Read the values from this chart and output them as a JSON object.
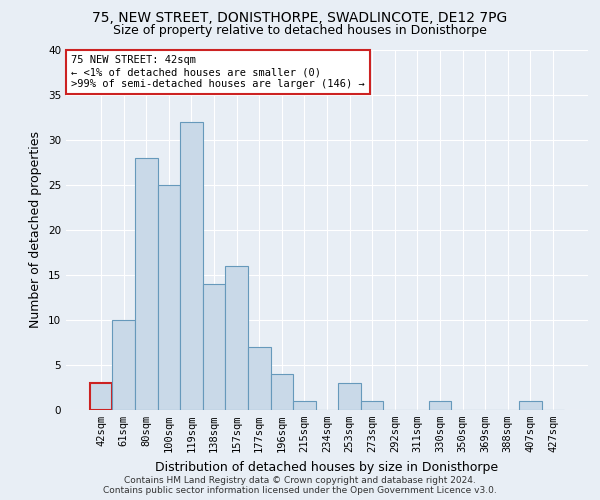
{
  "title1": "75, NEW STREET, DONISTHORPE, SWADLINCOTE, DE12 7PG",
  "title2": "Size of property relative to detached houses in Donisthorpe",
  "xlabel": "Distribution of detached houses by size in Donisthorpe",
  "ylabel": "Number of detached properties",
  "footnote1": "Contains HM Land Registry data © Crown copyright and database right 2024.",
  "footnote2": "Contains public sector information licensed under the Open Government Licence v3.0.",
  "bar_labels": [
    "42sqm",
    "61sqm",
    "80sqm",
    "100sqm",
    "119sqm",
    "138sqm",
    "157sqm",
    "177sqm",
    "196sqm",
    "215sqm",
    "234sqm",
    "253sqm",
    "273sqm",
    "292sqm",
    "311sqm",
    "330sqm",
    "350sqm",
    "369sqm",
    "388sqm",
    "407sqm",
    "427sqm"
  ],
  "bar_values": [
    3,
    10,
    28,
    25,
    32,
    14,
    16,
    7,
    4,
    1,
    0,
    3,
    1,
    0,
    0,
    1,
    0,
    0,
    0,
    1,
    0
  ],
  "bar_color": "#c9d9e8",
  "bar_edge_color": "#6699bb",
  "highlight_bar_index": 0,
  "highlight_bar_edge_color": "#cc2222",
  "annotation_text": "75 NEW STREET: 42sqm\n← <1% of detached houses are smaller (0)\n>99% of semi-detached houses are larger (146) →",
  "annotation_box_color": "#ffffff",
  "annotation_box_edge_color": "#cc2222",
  "ylim": [
    0,
    40
  ],
  "yticks": [
    0,
    5,
    10,
    15,
    20,
    25,
    30,
    35,
    40
  ],
  "bg_color": "#e8eef5",
  "plot_bg_color": "#e8eef5",
  "grid_color": "#ffffff",
  "title1_fontsize": 10,
  "title2_fontsize": 9,
  "xlabel_fontsize": 9,
  "ylabel_fontsize": 9,
  "tick_fontsize": 7.5,
  "annotation_fontsize": 7.5,
  "footnote_fontsize": 6.5
}
